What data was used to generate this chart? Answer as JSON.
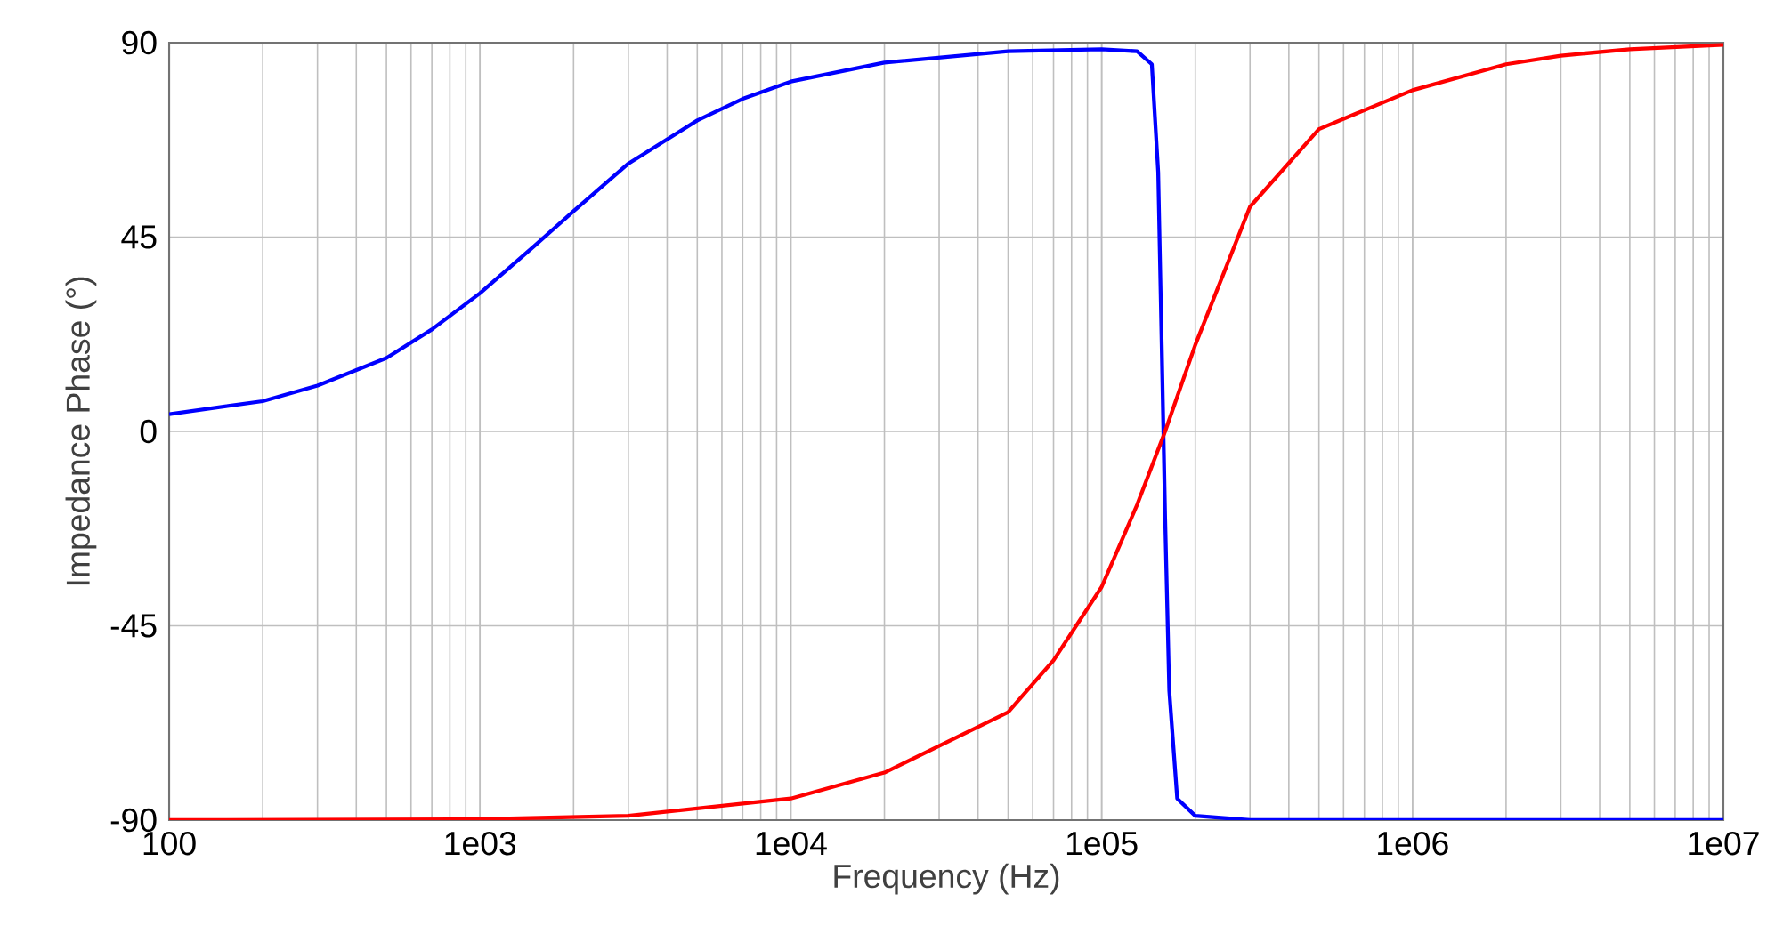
{
  "chart_data": {
    "type": "line",
    "xlabel": "Frequency (Hz)",
    "ylabel": "Impedance Phase (°)",
    "log": "x",
    "grid": true,
    "marker": "none",
    "line_style": "solid",
    "xlim": [
      100,
      10000000
    ],
    "ylim": [
      -90,
      90
    ],
    "xticks": [
      100,
      {
        "value": 1000,
        "label": "1e03"
      },
      {
        "value": 10000,
        "label": "1e04"
      },
      {
        "value": 100000,
        "label": "1e05"
      },
      {
        "value": 1000000,
        "label": "1e06"
      },
      {
        "value": 10000000,
        "label": "1e07"
      }
    ],
    "yticks": [
      -90,
      -45,
      0,
      45,
      90
    ],
    "series": [
      {
        "color": "#0000ff",
        "x": [
          100,
          200,
          300,
          500,
          700,
          1000,
          1500,
          2000,
          3000,
          5000,
          7000,
          10000,
          20000,
          50000,
          100000,
          130000,
          145000,
          152000,
          156000,
          160000,
          165000,
          175000,
          200000,
          300000,
          1000000,
          10000000
        ],
        "values": [
          4,
          7,
          10.6,
          17,
          23.6,
          32,
          43,
          51,
          62,
          72,
          77,
          81,
          85.4,
          88,
          88.5,
          88,
          85,
          60,
          20,
          -20,
          -60,
          -85,
          -89,
          -90,
          -90,
          -90
        ]
      },
      {
        "color": "#ff0000",
        "x": [
          100,
          1000,
          3000,
          10000,
          20000,
          50000,
          70000,
          100000,
          130000,
          160000,
          200000,
          300000,
          500000,
          1000000,
          2000000,
          3000000,
          5000000,
          10000000
        ],
        "values": [
          -90,
          -89.8,
          -89,
          -85,
          -79,
          -65,
          -53,
          -36,
          -17,
          0,
          20,
          52,
          70,
          79,
          85,
          87,
          88.5,
          89.5
        ]
      }
    ]
  }
}
